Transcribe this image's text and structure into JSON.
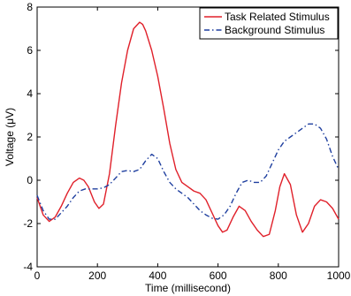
{
  "chart_data": {
    "type": "line",
    "title": "",
    "xlabel": "Time (millisecond)",
    "ylabel": "Voltage (μV)",
    "xlim": [
      0,
      1000
    ],
    "ylim": [
      -4,
      8
    ],
    "xticks": [
      0,
      200,
      400,
      600,
      800,
      1000
    ],
    "yticks": [
      -4,
      -2,
      0,
      2,
      4,
      6,
      8
    ],
    "grid": false,
    "legend_position": "top-right",
    "series": [
      {
        "name": "Task Related Stimulus",
        "color": "#e0202a",
        "line_style": "solid",
        "x": [
          0,
          20,
          40,
          60,
          80,
          100,
          120,
          140,
          155,
          170,
          190,
          205,
          220,
          240,
          260,
          280,
          300,
          320,
          340,
          350,
          360,
          380,
          400,
          420,
          440,
          460,
          480,
          500,
          520,
          540,
          560,
          580,
          600,
          615,
          630,
          650,
          670,
          690,
          710,
          730,
          750,
          770,
          790,
          805,
          820,
          840,
          860,
          880,
          900,
          920,
          940,
          960,
          980,
          1000
        ],
        "y": [
          -0.8,
          -1.6,
          -1.9,
          -1.7,
          -1.2,
          -0.6,
          -0.1,
          0.1,
          0.0,
          -0.3,
          -1.0,
          -1.3,
          -1.1,
          0.3,
          2.5,
          4.5,
          6.0,
          7.0,
          7.3,
          7.2,
          6.9,
          6.0,
          4.8,
          3.3,
          1.7,
          0.5,
          -0.1,
          -0.3,
          -0.5,
          -0.6,
          -0.9,
          -1.5,
          -2.1,
          -2.4,
          -2.3,
          -1.7,
          -1.2,
          -1.4,
          -1.9,
          -2.3,
          -2.6,
          -2.5,
          -1.4,
          -0.3,
          0.3,
          -0.2,
          -1.6,
          -2.4,
          -2.0,
          -1.2,
          -0.9,
          -1.0,
          -1.3,
          -1.8
        ]
      },
      {
        "name": "Background Stimulus",
        "color": "#1f3f9f",
        "line_style": "dashdot",
        "x": [
          0,
          20,
          40,
          60,
          80,
          100,
          120,
          140,
          160,
          180,
          200,
          220,
          240,
          260,
          280,
          300,
          320,
          340,
          360,
          380,
          400,
          420,
          440,
          460,
          480,
          500,
          520,
          540,
          560,
          580,
          600,
          620,
          640,
          660,
          680,
          700,
          720,
          740,
          760,
          780,
          800,
          820,
          840,
          860,
          880,
          900,
          920,
          940,
          960,
          980,
          1000
        ],
        "y": [
          -0.7,
          -1.4,
          -1.8,
          -1.8,
          -1.5,
          -1.2,
          -0.8,
          -0.5,
          -0.4,
          -0.4,
          -0.4,
          -0.35,
          -0.2,
          0.1,
          0.4,
          0.45,
          0.4,
          0.5,
          0.9,
          1.2,
          1.0,
          0.4,
          -0.1,
          -0.4,
          -0.6,
          -0.8,
          -1.1,
          -1.4,
          -1.6,
          -1.75,
          -1.8,
          -1.6,
          -1.2,
          -0.6,
          -0.1,
          0.0,
          -0.1,
          -0.1,
          0.2,
          0.8,
          1.4,
          1.8,
          2.0,
          2.2,
          2.4,
          2.6,
          2.6,
          2.4,
          1.9,
          1.1,
          0.5
        ]
      }
    ]
  }
}
